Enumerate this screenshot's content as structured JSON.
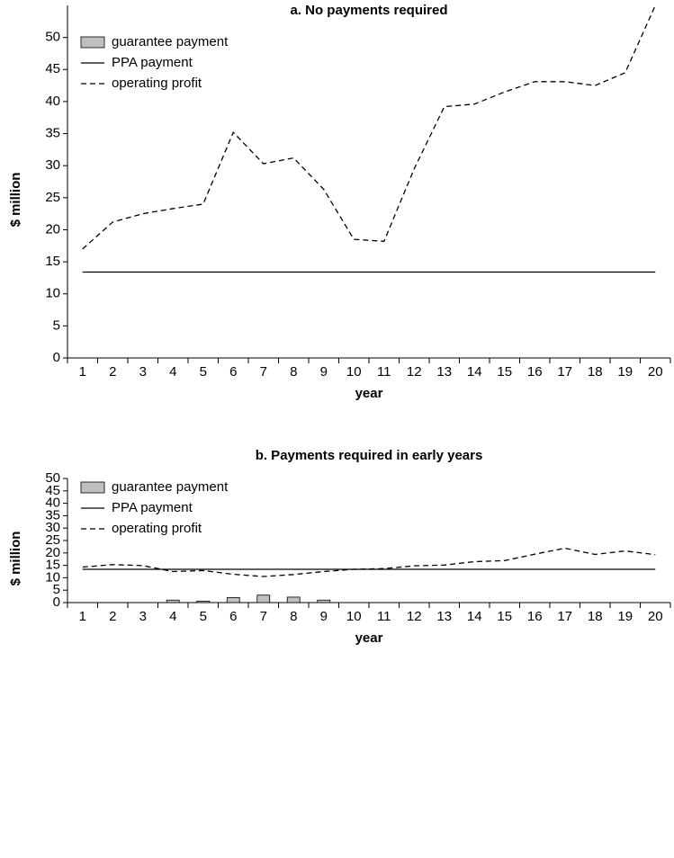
{
  "chart_data": [
    {
      "type": "combo",
      "title": "a. No payments required",
      "x_label": "year",
      "y_label": "$ million",
      "categories": [
        "1",
        "2",
        "3",
        "4",
        "5",
        "6",
        "7",
        "8",
        "9",
        "10",
        "11",
        "12",
        "13",
        "14",
        "15",
        "16",
        "17",
        "18",
        "19",
        "20"
      ],
      "ylim": [
        0,
        55
      ],
      "yticks": [
        0,
        5,
        10,
        15,
        20,
        25,
        30,
        35,
        40,
        45,
        50
      ],
      "legend": "upper-left",
      "series": [
        {
          "name": "guarantee payment",
          "style": "bar",
          "color": "#bfbfbf",
          "values": [
            0,
            0,
            0,
            0,
            0,
            0,
            0,
            0,
            0,
            0,
            0,
            0,
            0,
            0,
            0,
            0,
            0,
            0,
            0,
            0
          ]
        },
        {
          "name": "PPA payment",
          "style": "solid",
          "color": "#000000",
          "values": [
            13.4,
            13.4,
            13.4,
            13.4,
            13.4,
            13.4,
            13.4,
            13.4,
            13.4,
            13.4,
            13.4,
            13.4,
            13.4,
            13.4,
            13.4,
            13.4,
            13.4,
            13.4,
            13.4,
            13.4
          ]
        },
        {
          "name": "operating profit",
          "style": "dashed",
          "color": "#000000",
          "values": [
            17,
            21.2,
            22.5,
            23.3,
            24,
            35.2,
            30.3,
            31.2,
            26.3,
            18.5,
            18.2,
            29.5,
            39.2,
            39.6,
            41.5,
            43.1,
            43.1,
            42.5,
            44.5,
            55
          ]
        }
      ]
    },
    {
      "type": "combo",
      "title": "b. Payments required in early years",
      "x_label": "year",
      "y_label": "$ million",
      "categories": [
        "1",
        "2",
        "3",
        "4",
        "5",
        "6",
        "7",
        "8",
        "9",
        "10",
        "11",
        "12",
        "13",
        "14",
        "15",
        "16",
        "17",
        "18",
        "19",
        "20"
      ],
      "ylim": [
        0,
        50
      ],
      "yticks": [
        0,
        5,
        10,
        15,
        20,
        25,
        30,
        35,
        40,
        45,
        50
      ],
      "legend": "upper-left",
      "series": [
        {
          "name": "guarantee payment",
          "style": "bar",
          "color": "#bfbfbf",
          "values": [
            0,
            0,
            0,
            1,
            0.6,
            2,
            3,
            2.2,
            1,
            0,
            0,
            0,
            0,
            0,
            0,
            0,
            0,
            0,
            0,
            0
          ]
        },
        {
          "name": "PPA payment",
          "style": "solid",
          "color": "#000000",
          "values": [
            13.4,
            13.4,
            13.4,
            13.4,
            13.4,
            13.4,
            13.4,
            13.4,
            13.4,
            13.4,
            13.4,
            13.4,
            13.4,
            13.4,
            13.4,
            13.4,
            13.4,
            13.4,
            13.4,
            13.4
          ]
        },
        {
          "name": "operating profit",
          "style": "dashed",
          "color": "#000000",
          "values": [
            14.3,
            15.3,
            14.9,
            12.5,
            12.9,
            11.4,
            10.5,
            11.3,
            12.5,
            13.4,
            13.7,
            14.8,
            15.1,
            16.5,
            16.9,
            19.5,
            21.9,
            19.4,
            20.8,
            19.3
          ]
        }
      ]
    }
  ]
}
